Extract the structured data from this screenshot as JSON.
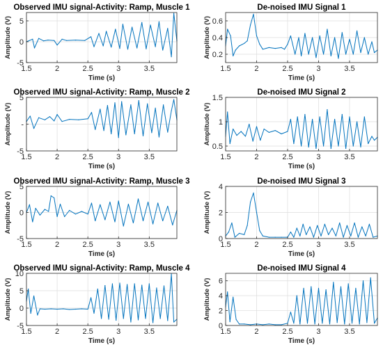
{
  "figure": {
    "colors": {
      "line": "#0072BD",
      "axes": "#262626",
      "grid": "#dcdcdc",
      "title": "#000000"
    }
  },
  "chart_data": [
    {
      "type": "line",
      "title": "Observed IMU signal-Activity: Ramp, Muscle  1",
      "xlabel": "Time (s)",
      "ylabel": "Amplitude (V)",
      "xlim": [
        1.5,
        3.95
      ],
      "ylim": [
        -5,
        7
      ],
      "xticks": [
        1.5,
        2,
        2.5,
        3,
        3.5
      ],
      "xtick_labels": [
        "1.5",
        "2",
        "2.5",
        "3",
        "3.5"
      ],
      "yticks": [
        -5,
        0,
        5
      ],
      "ytick_labels": [
        "-5",
        "0",
        "5"
      ],
      "grid": true,
      "series": [
        {
          "x": [
            1.5,
            1.55,
            1.6,
            1.63,
            1.7,
            1.78,
            1.85,
            1.95,
            2.0,
            2.08,
            2.15,
            2.3,
            2.45,
            2.55,
            2.6,
            2.68,
            2.75,
            2.8,
            2.88,
            2.95,
            3.02,
            3.07,
            3.15,
            3.22,
            3.3,
            3.38,
            3.45,
            3.52,
            3.6,
            3.66,
            3.72,
            3.8,
            3.86,
            3.9,
            3.95
          ],
          "y": [
            0,
            0.3,
            0.6,
            -1.5,
            0.8,
            0.2,
            0.4,
            0.3,
            -0.8,
            0.6,
            0.3,
            0.4,
            0.3,
            1.2,
            -1.2,
            2.0,
            -1.0,
            2.5,
            -1.3,
            3.0,
            -1.6,
            4.2,
            -1.8,
            3.5,
            -1.5,
            4.6,
            -1.7,
            4.0,
            -1.2,
            4.8,
            -2.0,
            3.2,
            -3.6,
            6.8,
            0.2
          ]
        }
      ]
    },
    {
      "type": "line",
      "title": "De-noised  IMU Signal 1",
      "xlabel": "Time (s)",
      "ylabel": "Amplitude (V)",
      "xlim": [
        1.5,
        3.95
      ],
      "ylim": [
        0.1,
        0.7
      ],
      "xticks": [
        1.5,
        2,
        2.5,
        3,
        3.5
      ],
      "xtick_labels": [
        "1.5",
        "2",
        "2.5",
        "3",
        "3.5"
      ],
      "yticks": [
        0.2,
        0.4,
        0.6
      ],
      "ytick_labels": [
        "0.2",
        "0.4",
        "0.6"
      ],
      "grid": true,
      "series": [
        {
          "x": [
            1.5,
            1.53,
            1.58,
            1.62,
            1.66,
            1.72,
            1.8,
            1.85,
            1.9,
            1.95,
            2.0,
            2.05,
            2.1,
            2.2,
            2.3,
            2.4,
            2.45,
            2.5,
            2.55,
            2.62,
            2.68,
            2.72,
            2.78,
            2.84,
            2.9,
            2.96,
            3.02,
            3.08,
            3.14,
            3.2,
            3.26,
            3.32,
            3.38,
            3.44,
            3.5,
            3.56,
            3.62,
            3.68,
            3.74,
            3.8,
            3.86,
            3.9,
            3.95
          ],
          "y": [
            0.3,
            0.5,
            0.42,
            0.18,
            0.25,
            0.3,
            0.33,
            0.36,
            0.55,
            0.68,
            0.42,
            0.32,
            0.26,
            0.28,
            0.27,
            0.28,
            0.26,
            0.32,
            0.42,
            0.2,
            0.4,
            0.18,
            0.45,
            0.2,
            0.4,
            0.16,
            0.42,
            0.2,
            0.5,
            0.18,
            0.4,
            0.15,
            0.46,
            0.2,
            0.38,
            0.2,
            0.48,
            0.22,
            0.4,
            0.2,
            0.35,
            0.22,
            0.25
          ]
        }
      ]
    },
    {
      "type": "line",
      "title": "Observed IMU signal-Activity: Ramp, Muscle  2",
      "xlabel": "Time (s)",
      "ylabel": "Amplitude (V)",
      "xlim": [
        1.5,
        3.95
      ],
      "ylim": [
        -5,
        5
      ],
      "xticks": [
        1.5,
        2,
        2.5,
        3,
        3.5
      ],
      "xtick_labels": [
        "1.5",
        "2",
        "2.5",
        "3",
        "3.5"
      ],
      "yticks": [
        -5,
        0,
        5
      ],
      "ytick_labels": [
        "-5",
        "-",
        "5"
      ],
      "grid": true,
      "series": [
        {
          "x": [
            1.5,
            1.56,
            1.62,
            1.7,
            1.8,
            1.88,
            1.95,
            2.0,
            2.08,
            2.2,
            2.35,
            2.5,
            2.56,
            2.62,
            2.7,
            2.76,
            2.82,
            2.88,
            2.94,
            3.0,
            3.05,
            3.12,
            3.2,
            3.26,
            3.33,
            3.4,
            3.47,
            3.54,
            3.6,
            3.66,
            3.73,
            3.8,
            3.86,
            3.9,
            3.95
          ],
          "y": [
            0.5,
            1.5,
            -0.8,
            1.2,
            0.8,
            1.4,
            0.6,
            1.8,
            0.5,
            0.9,
            0.8,
            1.0,
            2.2,
            -1.0,
            2.8,
            -1.2,
            3.5,
            -1.8,
            4.0,
            -2.5,
            4.2,
            -2.0,
            3.6,
            -1.8,
            4.4,
            -2.2,
            3.8,
            -1.6,
            3.0,
            -2.4,
            3.6,
            -1.5,
            2.5,
            4.6,
            0.8
          ]
        }
      ]
    },
    {
      "type": "line",
      "title": "De-noised  IMU Signal 2",
      "xlabel": "Time (s)",
      "ylabel": "Amplitude (V)",
      "xlim": [
        1.5,
        3.95
      ],
      "ylim": [
        0.4,
        1.5
      ],
      "xticks": [
        1.5,
        2,
        2.5,
        3,
        3.5
      ],
      "xtick_labels": [
        "1.5",
        "2",
        "2.5",
        "3",
        "3.5"
      ],
      "yticks": [
        0.5,
        1,
        1.5
      ],
      "ytick_labels": [
        "0.5",
        "1",
        "1.5"
      ],
      "grid": true,
      "series": [
        {
          "x": [
            1.5,
            1.53,
            1.57,
            1.62,
            1.68,
            1.75,
            1.82,
            1.88,
            1.94,
            2.0,
            2.06,
            2.12,
            2.2,
            2.3,
            2.4,
            2.5,
            2.55,
            2.6,
            2.66,
            2.72,
            2.78,
            2.84,
            2.9,
            2.96,
            3.02,
            3.08,
            3.14,
            3.2,
            3.26,
            3.32,
            3.38,
            3.44,
            3.5,
            3.56,
            3.62,
            3.68,
            3.74,
            3.8,
            3.86,
            3.9,
            3.95
          ],
          "y": [
            0.7,
            1.2,
            0.55,
            0.85,
            0.72,
            0.8,
            0.7,
            0.95,
            0.6,
            0.9,
            0.62,
            0.85,
            0.78,
            0.82,
            0.75,
            0.8,
            1.05,
            0.55,
            1.1,
            0.5,
            1.15,
            0.48,
            1.05,
            0.45,
            1.1,
            0.5,
            1.25,
            0.45,
            1.05,
            0.5,
            1.15,
            0.45,
            1.1,
            0.5,
            1.0,
            0.48,
            1.1,
            0.55,
            0.7,
            0.62,
            0.68
          ]
        }
      ]
    },
    {
      "type": "line",
      "title": "Observed IMU signal-Activity: Ramp, Muscle  3",
      "xlabel": "Time (s)",
      "ylabel": "Amplitude (V)",
      "xlim": [
        1.5,
        3.95
      ],
      "ylim": [
        -5,
        5
      ],
      "xticks": [
        1.5,
        2,
        2.5,
        3,
        3.5
      ],
      "xtick_labels": [
        "1.5",
        "2",
        "2.5",
        "3",
        "3.5"
      ],
      "yticks": [
        -5,
        0,
        5
      ],
      "ytick_labels": [
        "-5",
        "0",
        "5"
      ],
      "grid": true,
      "series": [
        {
          "x": [
            1.5,
            1.55,
            1.6,
            1.65,
            1.72,
            1.8,
            1.86,
            1.9,
            1.95,
            2.0,
            2.05,
            2.12,
            2.2,
            2.3,
            2.4,
            2.5,
            2.56,
            2.62,
            2.7,
            2.78,
            2.86,
            2.94,
            3.0,
            3.08,
            3.16,
            3.24,
            3.32,
            3.4,
            3.48,
            3.56,
            3.64,
            3.72,
            3.8,
            3.88,
            3.95
          ],
          "y": [
            0,
            1.5,
            -1.8,
            0.8,
            -0.5,
            0.6,
            0.2,
            3.2,
            2.8,
            -0.8,
            1.6,
            -0.8,
            0.4,
            -0.3,
            0.2,
            -0.3,
            1.8,
            -1.6,
            1.5,
            -1.4,
            2.0,
            -1.8,
            2.2,
            -2.6,
            1.6,
            -2.0,
            2.6,
            -1.6,
            2.0,
            -2.2,
            1.8,
            -1.6,
            1.2,
            -2.4,
            0.4
          ]
        }
      ]
    },
    {
      "type": "line",
      "title": "De-noised  IMU Signal 3",
      "xlabel": "Time (s)",
      "ylabel": "Amplitude (V)",
      "xlim": [
        1.5,
        3.95
      ],
      "ylim": [
        0,
        4
      ],
      "xticks": [
        1.5,
        2,
        2.5,
        3,
        3.5
      ],
      "xtick_labels": [
        "1.5",
        "2",
        "2.5",
        "3",
        "3.5"
      ],
      "yticks": [
        0,
        2,
        4
      ],
      "ytick_labels": [
        "0",
        "2",
        "4"
      ],
      "grid": true,
      "series": [
        {
          "x": [
            1.5,
            1.55,
            1.6,
            1.65,
            1.72,
            1.8,
            1.85,
            1.9,
            1.95,
            2.0,
            2.05,
            2.1,
            2.2,
            2.3,
            2.4,
            2.5,
            2.55,
            2.6,
            2.65,
            2.7,
            2.75,
            2.8,
            2.86,
            2.92,
            2.98,
            3.04,
            3.1,
            3.16,
            3.22,
            3.28,
            3.34,
            3.4,
            3.46,
            3.52,
            3.58,
            3.64,
            3.7,
            3.76,
            3.82,
            3.88,
            3.95
          ],
          "y": [
            0.2,
            0.5,
            1.2,
            0.1,
            0.4,
            0.3,
            1.0,
            2.8,
            3.5,
            2.0,
            0.6,
            0.2,
            0.1,
            0.1,
            0.1,
            0.1,
            0.5,
            0.1,
            0.8,
            0.2,
            1.1,
            0.3,
            0.9,
            0.1,
            1.0,
            0.2,
            1.1,
            0.3,
            0.8,
            0.2,
            1.2,
            0.1,
            1.0,
            0.2,
            1.2,
            0.1,
            0.9,
            0.2,
            1.1,
            0.1,
            0.2
          ]
        }
      ]
    },
    {
      "type": "line",
      "title": "Observed IMU signal-Activity: Ramp, Muscle  4",
      "xlabel": "Time (s)",
      "ylabel": "Amplitude (V)",
      "xlim": [
        1.5,
        3.95
      ],
      "ylim": [
        -5,
        10
      ],
      "xticks": [
        1.5,
        2,
        2.5,
        3,
        3.5
      ],
      "xtick_labels": [
        "1.5",
        "2",
        "2.5",
        "3",
        "3.5"
      ],
      "yticks": [
        -5,
        0,
        5,
        10
      ],
      "ytick_labels": [
        "-5",
        "0",
        "5",
        "10"
      ],
      "grid": true,
      "series": [
        {
          "x": [
            1.5,
            1.53,
            1.57,
            1.62,
            1.68,
            1.72,
            1.8,
            1.9,
            2.0,
            2.1,
            2.2,
            2.3,
            2.4,
            2.5,
            2.55,
            2.6,
            2.66,
            2.72,
            2.78,
            2.84,
            2.9,
            2.96,
            3.02,
            3.08,
            3.14,
            3.2,
            3.26,
            3.32,
            3.38,
            3.44,
            3.5,
            3.56,
            3.62,
            3.68,
            3.74,
            3.8,
            3.86,
            3.9,
            3.95
          ],
          "y": [
            2.0,
            5.5,
            -1.5,
            3.5,
            -2.0,
            -0.2,
            -0.3,
            -0.2,
            -0.3,
            -0.2,
            -0.4,
            -0.3,
            -0.2,
            -0.3,
            3.0,
            -1.5,
            5.5,
            -3.0,
            6.5,
            -3.2,
            7.0,
            -3.5,
            7.2,
            -3.0,
            6.8,
            -4.0,
            7.0,
            -3.4,
            6.6,
            -3.0,
            7.0,
            -4.2,
            5.8,
            -3.0,
            6.4,
            -3.6,
            9.8,
            -4.0,
            -3.2
          ]
        }
      ]
    },
    {
      "type": "line",
      "title": "De-noised  IMU Signal 4",
      "xlabel": "Time (s)",
      "ylabel": "Amplitude (V)",
      "xlim": [
        1.5,
        3.95
      ],
      "ylim": [
        0,
        7
      ],
      "xticks": [
        1.5,
        2,
        2.5,
        3,
        3.5
      ],
      "xtick_labels": [
        "1.5",
        "2",
        "2.5",
        "3",
        "3.5"
      ],
      "yticks": [
        0,
        2,
        4,
        6
      ],
      "ytick_labels": [
        "0",
        "2",
        "4",
        "6"
      ],
      "grid": true,
      "series": [
        {
          "x": [
            1.5,
            1.53,
            1.57,
            1.62,
            1.67,
            1.72,
            1.8,
            1.9,
            2.0,
            2.1,
            2.2,
            2.3,
            2.4,
            2.5,
            2.55,
            2.6,
            2.65,
            2.7,
            2.76,
            2.82,
            2.88,
            2.94,
            3.0,
            3.06,
            3.12,
            3.18,
            3.24,
            3.3,
            3.36,
            3.42,
            3.48,
            3.54,
            3.6,
            3.66,
            3.72,
            3.78,
            3.84,
            3.9,
            3.95
          ],
          "y": [
            2.5,
            4.5,
            0.5,
            3.8,
            0.8,
            0.2,
            0.2,
            0.1,
            0.2,
            0.1,
            0.2,
            0.1,
            0.1,
            0.3,
            1.8,
            0.3,
            4.0,
            0.2,
            5.0,
            0.3,
            5.2,
            0.2,
            5.0,
            0.3,
            4.8,
            0.2,
            5.8,
            0.4,
            5.2,
            0.2,
            5.6,
            0.3,
            5.0,
            0.2,
            6.0,
            0.4,
            6.4,
            0.3,
            1.0
          ]
        }
      ]
    }
  ]
}
